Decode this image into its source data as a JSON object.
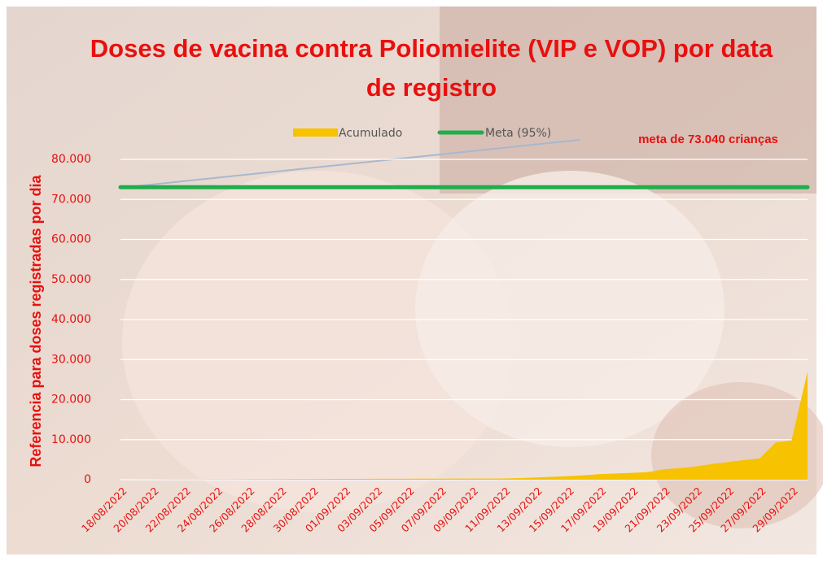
{
  "chart_data": {
    "type": "area",
    "title": "Doses de vacina contra Poliomielite (VIP e VOP) por data de registro",
    "y_label": "Referencia para doses registradas por dia",
    "annotation": "meta de 73.040 crianças",
    "categories": [
      "18/08/2022",
      null,
      "20/08/2022",
      null,
      "22/08/2022",
      null,
      "24/08/2022",
      null,
      "26/08/2022",
      null,
      "28/08/2022",
      null,
      "30/08/2022",
      null,
      "01/09/2022",
      null,
      "03/09/2022",
      null,
      "05/09/2022",
      null,
      "07/09/2022",
      null,
      "09/09/2022",
      null,
      "11/09/2022",
      null,
      "13/09/2022",
      null,
      "15/09/2022",
      null,
      "17/09/2022",
      null,
      "19/09/2022",
      null,
      "21/09/2022",
      null,
      "23/09/2022",
      null,
      "25/09/2022",
      null,
      "27/09/2022",
      null,
      "29/09/2022",
      null
    ],
    "series": [
      {
        "name": "Acumulado",
        "color": "#f7c200",
        "values": [
          10,
          20,
          30,
          40,
          50,
          60,
          70,
          80,
          90,
          100,
          120,
          140,
          160,
          180,
          200,
          210,
          220,
          230,
          240,
          250,
          260,
          270,
          280,
          290,
          300,
          400,
          550,
          700,
          900,
          1100,
          1400,
          1550,
          1700,
          1900,
          2600,
          2900,
          3300,
          3900,
          4400,
          4900,
          5300,
          9300,
          9800,
          27000
        ]
      },
      {
        "name": "Meta (95%)",
        "color": "#1fae4a",
        "values": [
          73040,
          73040,
          73040,
          73040,
          73040,
          73040,
          73040,
          73040,
          73040,
          73040,
          73040,
          73040,
          73040,
          73040,
          73040,
          73040,
          73040,
          73040,
          73040,
          73040,
          73040,
          73040,
          73040,
          73040,
          73040,
          73040,
          73040,
          73040,
          73040,
          73040,
          73040,
          73040,
          73040,
          73040,
          73040,
          73040,
          73040,
          73040,
          73040,
          73040,
          73040,
          73040,
          73040,
          73040
        ]
      }
    ],
    "ylim": [
      0,
      80000
    ],
    "yticks": [
      0,
      {
        "value": 10000,
        "label": "10.000"
      },
      {
        "value": 20000,
        "label": "20.000"
      },
      {
        "value": 30000,
        "label": "30.000"
      },
      {
        "value": 40000,
        "label": "40.000"
      },
      {
        "value": 50000,
        "label": "50.000"
      },
      {
        "value": 60000,
        "label": "60.000"
      },
      {
        "value": 70000,
        "label": "70.000"
      },
      {
        "value": 80000,
        "label": "80.000"
      }
    ],
    "grid": true
  }
}
